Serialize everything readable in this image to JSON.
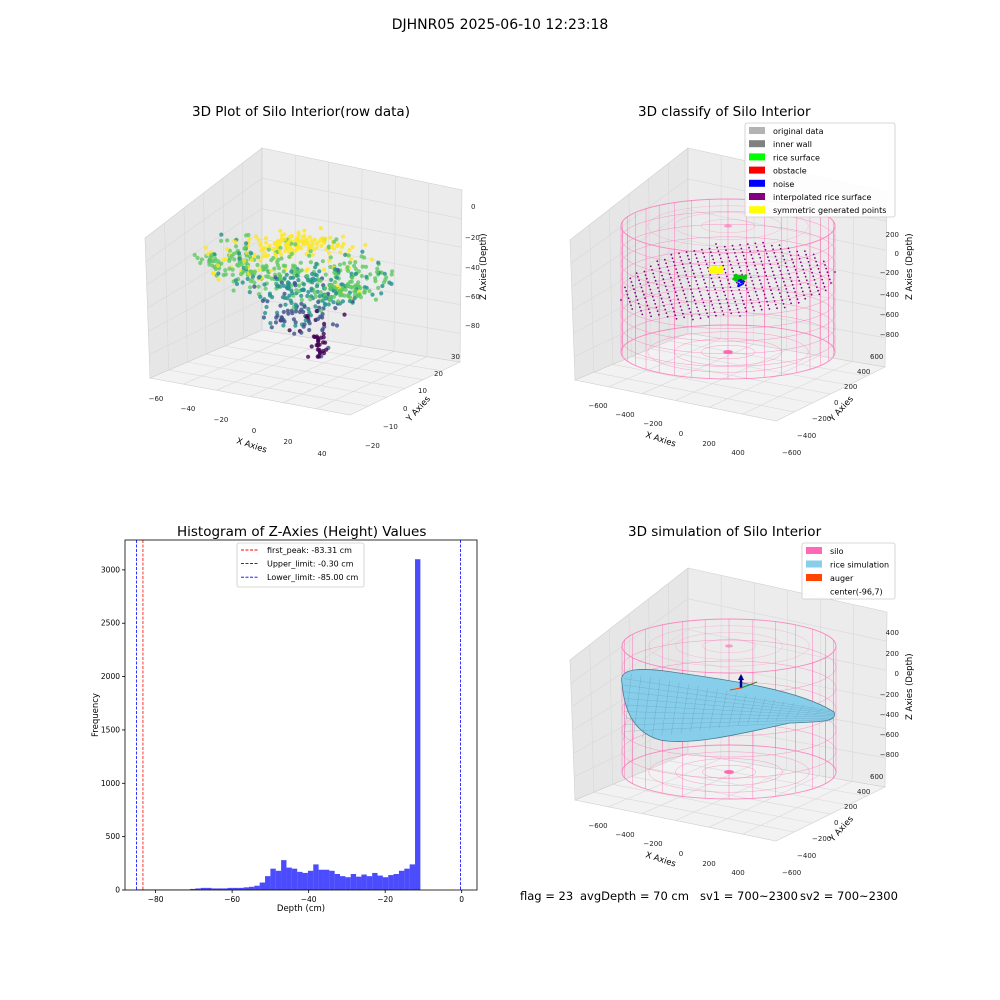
{
  "figure_title": "DJHNR05 2025-06-10 12:23:18",
  "footer": {
    "flag": "flag = 23",
    "avg_depth": "avgDepth = 70 cm",
    "sv1": "sv1 = 700~2300",
    "sv2": "sv2 = 700~2300"
  },
  "chart_data": [
    {
      "type": "scatter",
      "projection": "3d",
      "title": "3D Plot of Silo Interior(row data)",
      "xlabel": "X Axies",
      "ylabel": "Y Axies",
      "zlabel": "Z Axies (Depth)",
      "x_ticks": [
        "−60",
        "−40",
        "−20",
        "0",
        "20",
        "40"
      ],
      "y_ticks": [
        "−20",
        "−10",
        "0",
        "10",
        "20",
        "30"
      ],
      "z_ticks": [
        "0",
        "−20",
        "−40",
        "−60",
        "−80"
      ],
      "colormap": "viridis",
      "colormap_colors": [
        "#440154",
        "#3b528b",
        "#21918c",
        "#5ec962",
        "#fde725"
      ]
    },
    {
      "type": "scatter",
      "projection": "3d",
      "title": "3D classify of Silo Interior",
      "xlabel": "X Axies",
      "ylabel": "Y Axies",
      "zlabel": "Z Axies (Depth)",
      "x_ticks": [
        "−600",
        "−400",
        "−200",
        "0",
        "200",
        "400"
      ],
      "y_ticks": [
        "−600",
        "−400",
        "−200",
        "0",
        "200",
        "400",
        "600"
      ],
      "z_ticks": [
        "200",
        "0",
        "−200",
        "−400",
        "−600",
        "−800"
      ],
      "legend_position": "top-right",
      "legend": [
        {
          "label": "original data",
          "color": "#b3b3b3"
        },
        {
          "label": "inner wall",
          "color": "#808080"
        },
        {
          "label": "rice surface",
          "color": "#00ff00"
        },
        {
          "label": "obstacle",
          "color": "#ff0000"
        },
        {
          "label": "noise",
          "color": "#0000ff"
        },
        {
          "label": "interpolated rice surface",
          "color": "#800080"
        },
        {
          "label": "symmetric generated points",
          "color": "#ffff00"
        }
      ]
    },
    {
      "type": "bar",
      "title": "Histogram of Z-Axies (Height) Values",
      "xlabel": "Depth (cm)",
      "ylabel": "Frequency",
      "xlim": [
        -88,
        4
      ],
      "ylim": [
        0,
        3280
      ],
      "x_ticks": [
        -80,
        -60,
        -40,
        -20,
        0
      ],
      "x_tick_labels": [
        "−80",
        "−60",
        "−40",
        "−20",
        "0"
      ],
      "y_ticks": [
        0,
        500,
        1000,
        1500,
        2000,
        2500,
        3000
      ],
      "bar_color": "#0000ff",
      "bin_start": -85,
      "bin_width": 1.4,
      "values": [
        5,
        5,
        5,
        5,
        5,
        5,
        5,
        5,
        5,
        5,
        10,
        15,
        20,
        20,
        15,
        15,
        15,
        20,
        20,
        20,
        25,
        30,
        40,
        70,
        130,
        200,
        180,
        280,
        210,
        200,
        170,
        160,
        180,
        240,
        190,
        190,
        180,
        150,
        130,
        120,
        150,
        125,
        145,
        130,
        160,
        135,
        120,
        140,
        150,
        180,
        200,
        240,
        3100
      ],
      "vlines": [
        {
          "label": "first_peak: -83.31 cm",
          "x": -83.31,
          "color": "#ff0000"
        },
        {
          "label": "Upper_limit: -0.30 cm",
          "x": -0.3,
          "color": "#0000ff"
        },
        {
          "label": "Lower_limit: -85.00 cm",
          "x": -85.0,
          "color": "#0000ff"
        }
      ],
      "legend_position": "top-center"
    },
    {
      "type": "surface",
      "projection": "3d",
      "title": "3D simulation of Silo Interior",
      "xlabel": "X Axies",
      "ylabel": "Y Axies",
      "zlabel": "Z Axies (Depth)",
      "x_ticks": [
        "−600",
        "−400",
        "−200",
        "0",
        "200",
        "400"
      ],
      "y_ticks": [
        "−600",
        "−400",
        "−200",
        "0",
        "200",
        "400",
        "600"
      ],
      "z_ticks": [
        "400",
        "200",
        "0",
        "−200",
        "−400",
        "−600",
        "−800"
      ],
      "legend_position": "top-right",
      "legend": [
        {
          "label": "silo",
          "color": "#ff69b4"
        },
        {
          "label": "rice simulation",
          "color": "#87ceeb"
        },
        {
          "label": "auger",
          "color": "#ff4500"
        },
        {
          "label": "center(-96,7)",
          "color": ""
        }
      ]
    }
  ]
}
